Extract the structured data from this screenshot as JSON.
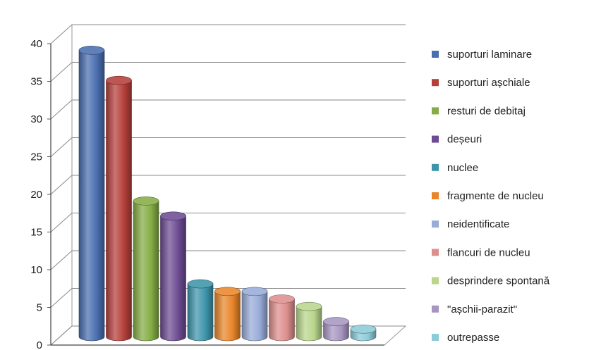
{
  "chart_data": {
    "type": "bar",
    "style": "3d-cylinder",
    "categories": [
      "suporturi laminare",
      "suporturi așchiale",
      "resturi de debitaj",
      "deșeuri",
      "nuclee",
      "fragmente de nucleu",
      "neidentificate",
      "flancuri de nucleu",
      "desprindere spontană",
      "\"așchii-parazit\"",
      "outrepasse"
    ],
    "values": [
      38,
      34,
      18,
      16,
      7,
      6,
      6,
      5,
      4,
      2,
      1
    ],
    "colors": [
      "#4a6fb0",
      "#b5403b",
      "#85ad45",
      "#6d4c93",
      "#3e95ab",
      "#e9862a",
      "#98acd8",
      "#dd8f8d",
      "#b9d68c",
      "#a896c2",
      "#8ccbd8"
    ],
    "ylim": [
      0,
      40
    ],
    "yticks": [
      "0",
      "5",
      "10",
      "15",
      "20",
      "25",
      "30",
      "35",
      "40"
    ],
    "xlabel": "",
    "ylabel": "",
    "grid": true,
    "legend_position": "right"
  }
}
